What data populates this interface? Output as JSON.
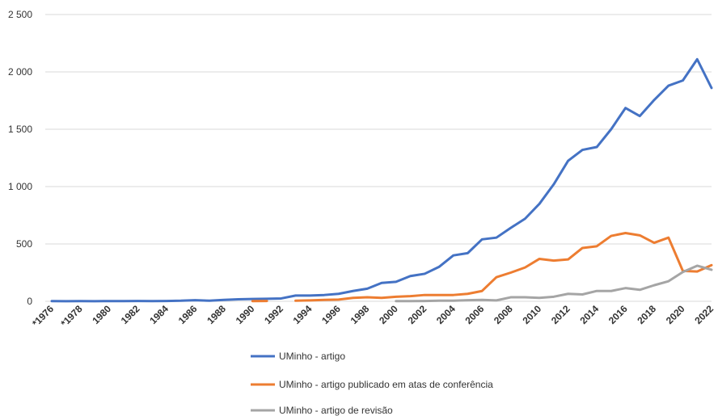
{
  "chart_data": {
    "type": "line",
    "title": "",
    "xlabel": "",
    "ylabel": "",
    "ylim": [
      0,
      2500
    ],
    "yticks": [
      0,
      500,
      1000,
      1500,
      2000,
      2500
    ],
    "ytick_labels": [
      "0",
      "500",
      "1 000",
      "1 500",
      "2 000",
      "2 500"
    ],
    "grid": true,
    "legend_position": "bottom",
    "x_tick_labels": [
      "*1976",
      "*1978",
      "1980",
      "1982",
      "1984",
      "1986",
      "1988",
      "1990",
      "1992",
      "1994",
      "1996",
      "1998",
      "2000",
      "2002",
      "2004",
      "2006",
      "2008",
      "2010",
      "2012",
      "2014",
      "2016",
      "2018",
      "2020",
      "2022"
    ],
    "x_tick_years": [
      1976,
      1978,
      1980,
      1982,
      1984,
      1986,
      1988,
      1990,
      1992,
      1994,
      1996,
      1998,
      2000,
      2002,
      2004,
      2006,
      2008,
      2010,
      2012,
      2014,
      2016,
      2018,
      2020,
      2022
    ],
    "x_range": [
      1976,
      2022
    ],
    "series": [
      {
        "name": "UMinho - artigo",
        "color": "#4472c4",
        "segments": [
          [
            [
              1976,
              2
            ],
            [
              1977,
              1
            ],
            [
              1978,
              2
            ],
            [
              1979,
              1
            ],
            [
              1980,
              2
            ],
            [
              1981,
              2
            ],
            [
              1982,
              3
            ],
            [
              1983,
              2
            ],
            [
              1984,
              3
            ],
            [
              1985,
              5
            ],
            [
              1986,
              10
            ],
            [
              1987,
              5
            ],
            [
              1988,
              12
            ],
            [
              1989,
              18
            ],
            [
              1990,
              20
            ],
            [
              1991,
              22
            ],
            [
              1992,
              25
            ],
            [
              1993,
              50
            ],
            [
              1994,
              50
            ],
            [
              1995,
              55
            ],
            [
              1996,
              65
            ],
            [
              1997,
              90
            ],
            [
              1998,
              110
            ],
            [
              1999,
              160
            ],
            [
              2000,
              170
            ],
            [
              2001,
              220
            ],
            [
              2002,
              240
            ],
            [
              2003,
              300
            ],
            [
              2004,
              400
            ],
            [
              2005,
              420
            ],
            [
              2006,
              540
            ],
            [
              2007,
              555
            ],
            [
              2008,
              640
            ],
            [
              2009,
              720
            ],
            [
              2010,
              850
            ],
            [
              2011,
              1020
            ],
            [
              2012,
              1225
            ],
            [
              2013,
              1320
            ],
            [
              2014,
              1345
            ],
            [
              2015,
              1500
            ],
            [
              2016,
              1685
            ],
            [
              2017,
              1615
            ],
            [
              2018,
              1755
            ],
            [
              2019,
              1880
            ],
            [
              2020,
              1925
            ],
            [
              2021,
              2110
            ],
            [
              2022,
              1860
            ]
          ]
        ]
      },
      {
        "name": "UMinho - artigo publicado em atas de conferência",
        "color": "#ed7d31",
        "segments": [
          [
            [
              1990,
              2
            ],
            [
              1991,
              3
            ]
          ],
          [
            [
              1993,
              5
            ],
            [
              1994,
              8
            ],
            [
              1995,
              12
            ],
            [
              1996,
              15
            ],
            [
              1997,
              30
            ],
            [
              1998,
              35
            ],
            [
              1999,
              30
            ],
            [
              2000,
              40
            ],
            [
              2001,
              45
            ],
            [
              2002,
              55
            ],
            [
              2003,
              55
            ],
            [
              2004,
              55
            ],
            [
              2005,
              65
            ],
            [
              2006,
              90
            ],
            [
              2007,
              210
            ],
            [
              2008,
              250
            ],
            [
              2009,
              295
            ],
            [
              2010,
              370
            ],
            [
              2011,
              355
            ],
            [
              2012,
              365
            ],
            [
              2013,
              465
            ],
            [
              2014,
              480
            ],
            [
              2015,
              570
            ],
            [
              2016,
              595
            ],
            [
              2017,
              575
            ],
            [
              2018,
              510
            ],
            [
              2019,
              555
            ],
            [
              2020,
              265
            ],
            [
              2021,
              260
            ],
            [
              2022,
              315
            ]
          ]
        ]
      },
      {
        "name": "UMinho - artigo de revisão",
        "color": "#a5a5a5",
        "segments": [
          [
            [
              2000,
              2
            ],
            [
              2001,
              2
            ],
            [
              2002,
              3
            ],
            [
              2003,
              5
            ],
            [
              2004,
              5
            ],
            [
              2005,
              10
            ],
            [
              2006,
              12
            ],
            [
              2007,
              8
            ],
            [
              2008,
              35
            ],
            [
              2009,
              35
            ],
            [
              2010,
              30
            ],
            [
              2011,
              40
            ],
            [
              2012,
              65
            ],
            [
              2013,
              60
            ],
            [
              2014,
              90
            ],
            [
              2015,
              90
            ],
            [
              2016,
              115
            ],
            [
              2017,
              100
            ],
            [
              2018,
              140
            ],
            [
              2019,
              175
            ],
            [
              2020,
              255
            ],
            [
              2021,
              310
            ],
            [
              2022,
              275
            ]
          ]
        ]
      }
    ]
  }
}
